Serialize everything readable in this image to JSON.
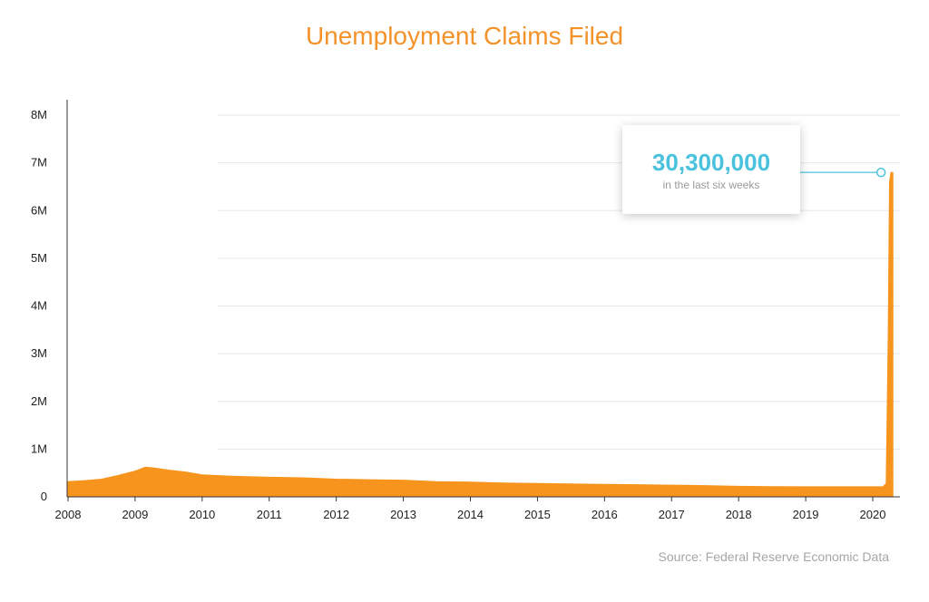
{
  "title": "Unemployment Claims Filed",
  "source": "Source: Federal Reserve Economic Data",
  "callout": {
    "value": "30,300,000",
    "label": "in the last six weeks"
  },
  "colors": {
    "area": "#f7941d",
    "title": "#f4922a",
    "callout_accent": "#4bc2dd",
    "grid": "#e6e6e6",
    "axis": "#333333"
  },
  "chart_data": {
    "type": "area",
    "title": "Unemployment Claims Filed",
    "xlabel": "",
    "ylabel": "",
    "xlim": [
      2008,
      2020.35
    ],
    "ylim": [
      0,
      8000000
    ],
    "x_ticks": [
      2008,
      2009,
      2010,
      2011,
      2012,
      2013,
      2014,
      2015,
      2016,
      2017,
      2018,
      2019,
      2020
    ],
    "x_tick_labels": [
      "2008",
      "2009",
      "2010",
      "2011",
      "2012",
      "2013",
      "2014",
      "2015",
      "2016",
      "2017",
      "2018",
      "2019",
      "2020"
    ],
    "y_ticks": [
      0,
      1000000,
      2000000,
      3000000,
      4000000,
      5000000,
      6000000,
      7000000,
      8000000
    ],
    "y_tick_labels": [
      "0",
      "1M",
      "2M",
      "3M",
      "4M",
      "5M",
      "6M",
      "7M",
      "8M"
    ],
    "grid": true,
    "series": [
      {
        "x": [
          2008.0,
          2008.25,
          2008.5,
          2008.75,
          2009.0,
          2009.15,
          2009.25,
          2009.5,
          2009.75,
          2010.0,
          2010.5,
          2011.0,
          2011.5,
          2012.0,
          2012.5,
          2013.0,
          2013.5,
          2014.0,
          2014.5,
          2015.0,
          2015.5,
          2016.0,
          2016.5,
          2017.0,
          2017.5,
          2018.0,
          2018.5,
          2019.0,
          2019.5,
          2020.0,
          2020.15,
          2020.2,
          2020.23,
          2020.25,
          2020.27,
          2020.3
        ],
        "y": [
          320000,
          340000,
          370000,
          450000,
          540000,
          620000,
          610000,
          560000,
          520000,
          460000,
          430000,
          410000,
          400000,
          370000,
          360000,
          350000,
          320000,
          310000,
          290000,
          280000,
          270000,
          260000,
          255000,
          245000,
          235000,
          220000,
          215000,
          210000,
          210000,
          210000,
          210000,
          280000,
          3300000,
          6600000,
          6800000,
          6800000
        ]
      }
    ],
    "annotations": [
      {
        "x": 2020.3,
        "y": 6800000,
        "text": "30,300,000",
        "subtext": "in the last six weeks"
      }
    ]
  }
}
